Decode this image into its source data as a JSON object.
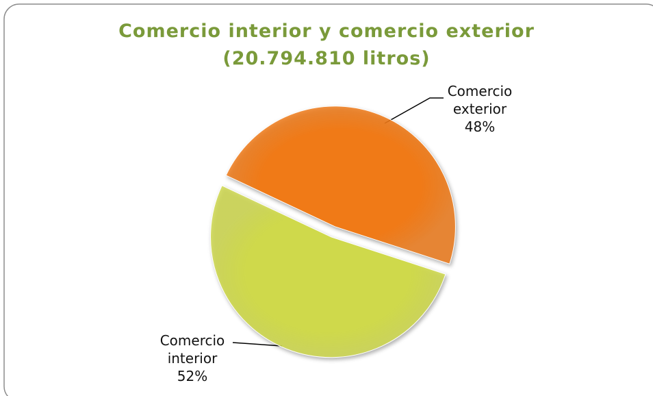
{
  "chart_data": {
    "type": "pie",
    "title": "Comercio interior y comercio exterior",
    "subtitle": "(20.794.810 litros)",
    "categories": [
      "Comercio exterior",
      "Comercio interior"
    ],
    "values": [
      48,
      52
    ],
    "value_labels": [
      "48%",
      "52%"
    ],
    "colors": [
      "#f07a17",
      "#cfd94b"
    ]
  }
}
